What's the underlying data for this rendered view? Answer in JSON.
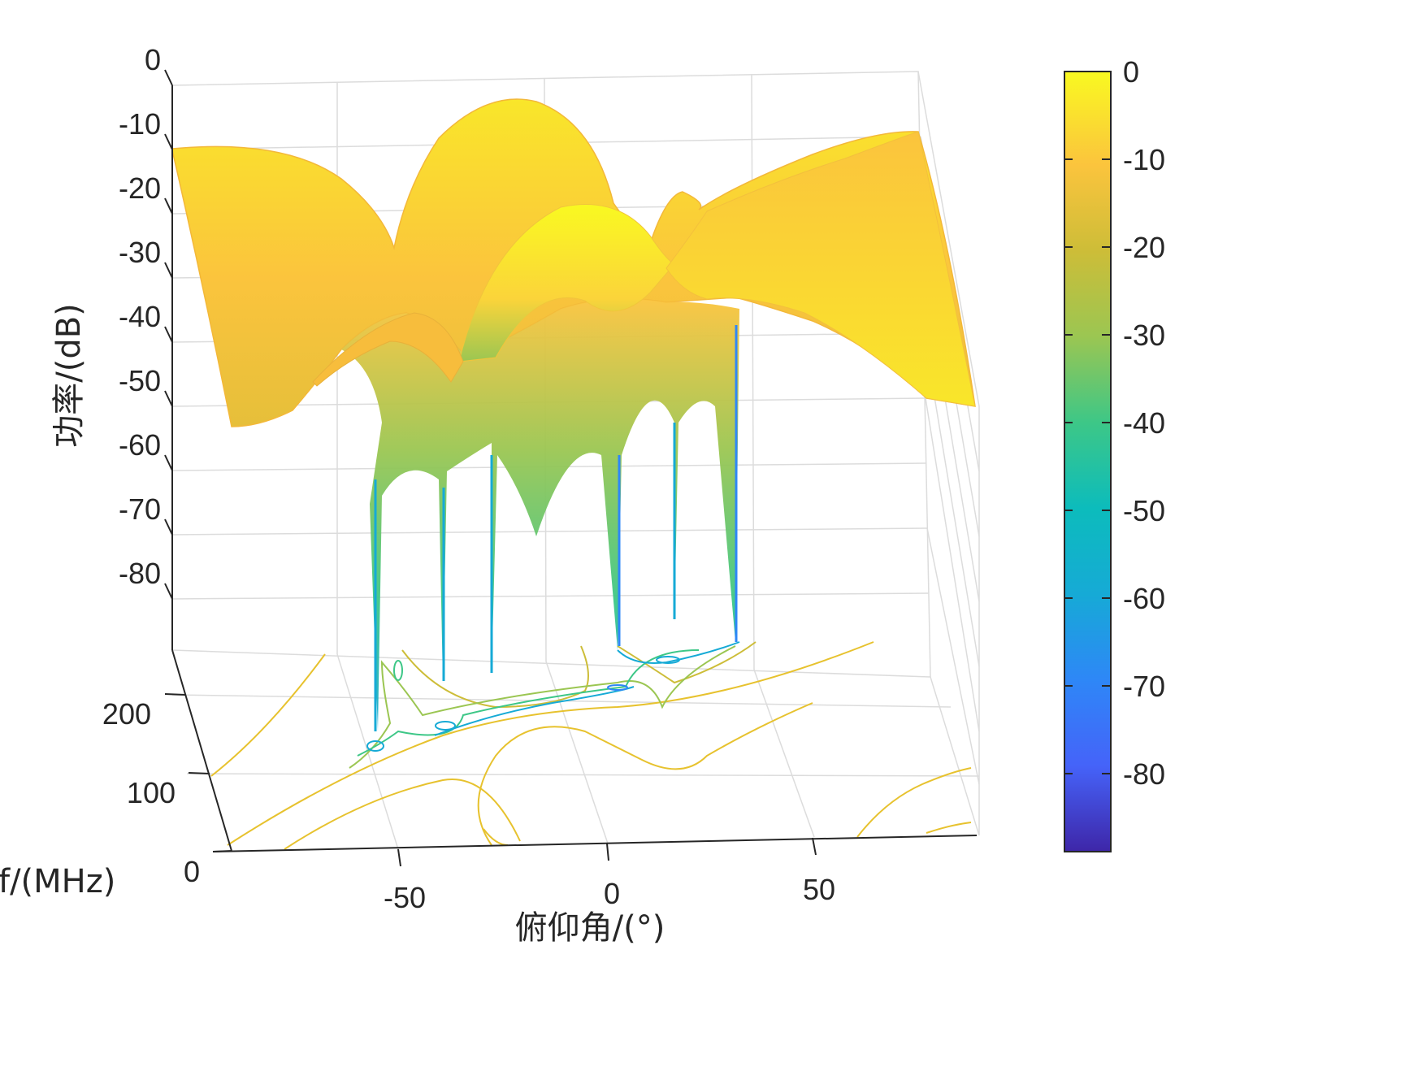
{
  "chart_data": {
    "type": "surface",
    "xlabel": "俯仰角/(°)",
    "ylabel": "f/(MHz)",
    "zlabel": "功率/(dB)",
    "xticks": [
      "-50",
      "0",
      "50"
    ],
    "yticks": [
      "0",
      "100",
      "200"
    ],
    "zticks": [
      "0",
      "-10",
      "-20",
      "-30",
      "-40",
      "-50",
      "-60",
      "-70",
      "-80"
    ],
    "xlim": [
      -90,
      90
    ],
    "ylim": [
      0,
      250
    ],
    "zlim": [
      -90,
      0
    ],
    "colorbar": {
      "range": [
        -89,
        0
      ],
      "ticks": [
        "0",
        "-10",
        "-20",
        "-30",
        "-40",
        "-50",
        "-60",
        "-70",
        "-80"
      ],
      "colors": [
        "#3e26a8",
        "#4563f9",
        "#2e87f7",
        "#16aad6",
        "#0cbcbc",
        "#3dc787",
        "#9bc652",
        "#cdbd38",
        "#fbc43d",
        "#f9f921"
      ]
    },
    "null_angles_deg": [
      -58,
      -41,
      -29,
      2,
      16,
      30
    ],
    "grid": true,
    "colormap": "parula"
  }
}
